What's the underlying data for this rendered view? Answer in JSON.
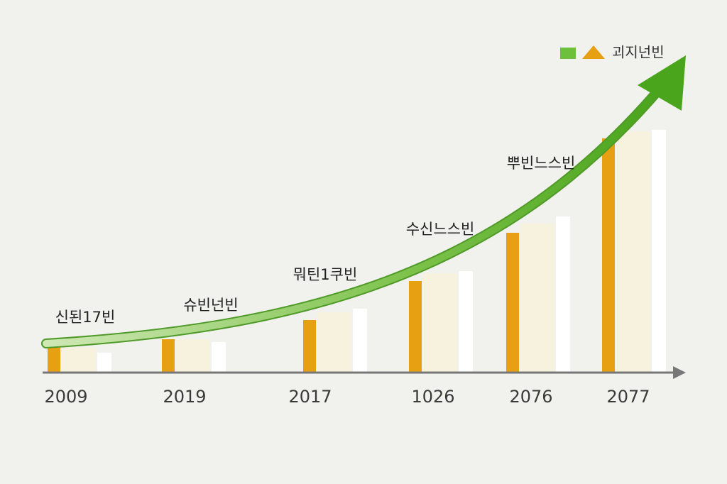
{
  "chart_data": {
    "type": "bar",
    "categories": [
      "2009",
      "2019",
      "2017",
      "1026",
      "2076",
      "2077"
    ],
    "series": [
      {
        "color": "#e8a013",
        "values": [
          35,
          47,
          74,
          129,
          197,
          330
        ]
      },
      {
        "color": "#f7f2de",
        "values": [
          35,
          47,
          85,
          140,
          210,
          340
        ]
      },
      {
        "color": "#ffffff",
        "values": [
          28,
          43,
          90,
          143,
          220,
          342
        ]
      }
    ],
    "ylim": [
      0,
      350
    ],
    "annotations": [
      "신된17빈",
      "슈빈넌빈",
      "뭐틴1쿠빈",
      "수신느스빈",
      "뿌빈느스빈"
    ],
    "legend": {
      "label": "괴지넌빈"
    }
  }
}
